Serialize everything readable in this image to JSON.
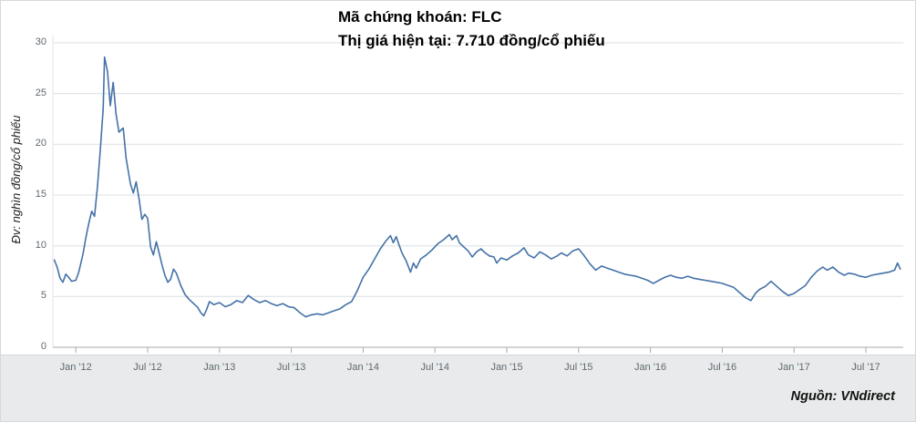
{
  "chart_data": {
    "type": "line",
    "title": "Mã chứng khoán: FLC",
    "subtitle": "Thị giá hiện tại: 7.710 đồng/cổ phiếu",
    "ylabel": "Đv: nghìn đồng/cổ phiếu",
    "source": "Nguồn: VNdirect",
    "line_color": "#4572a7",
    "grid_color": "#dcdfe2",
    "axis_color": "#a3a9af",
    "grid": true,
    "legend": "none",
    "xlim": [
      2011.84,
      2017.76
    ],
    "ylim": [
      0,
      30
    ],
    "yticks": [
      0,
      5,
      10,
      15,
      20,
      25,
      30
    ],
    "xticks": [
      {
        "v": 2012.0,
        "label": "Jan '12"
      },
      {
        "v": 2012.5,
        "label": "Jul '12"
      },
      {
        "v": 2013.0,
        "label": "Jan '13"
      },
      {
        "v": 2013.5,
        "label": "Jul '13"
      },
      {
        "v": 2014.0,
        "label": "Jan '14"
      },
      {
        "v": 2014.5,
        "label": "Jul '14"
      },
      {
        "v": 2015.0,
        "label": "Jan '15"
      },
      {
        "v": 2015.5,
        "label": "Jul '15"
      },
      {
        "v": 2016.0,
        "label": "Jan '16"
      },
      {
        "v": 2016.5,
        "label": "Jul '16"
      },
      {
        "v": 2017.0,
        "label": "Jan '17"
      },
      {
        "v": 2017.5,
        "label": "Jul '17"
      }
    ],
    "series": [
      {
        "name": "FLC",
        "points": [
          [
            2011.85,
            8.6
          ],
          [
            2011.87,
            7.9
          ],
          [
            2011.89,
            6.8
          ],
          [
            2011.91,
            6.4
          ],
          [
            2011.93,
            7.2
          ],
          [
            2011.95,
            6.9
          ],
          [
            2011.97,
            6.5
          ],
          [
            2012.0,
            6.6
          ],
          [
            2012.02,
            7.4
          ],
          [
            2012.05,
            9.2
          ],
          [
            2012.07,
            10.8
          ],
          [
            2012.09,
            12.2
          ],
          [
            2012.11,
            13.4
          ],
          [
            2012.13,
            12.9
          ],
          [
            2012.15,
            15.8
          ],
          [
            2012.17,
            19.4
          ],
          [
            2012.19,
            23.5
          ],
          [
            2012.2,
            28.6
          ],
          [
            2012.22,
            27.2
          ],
          [
            2012.24,
            23.8
          ],
          [
            2012.26,
            26.1
          ],
          [
            2012.28,
            23.0
          ],
          [
            2012.3,
            21.2
          ],
          [
            2012.33,
            21.6
          ],
          [
            2012.35,
            18.6
          ],
          [
            2012.38,
            16.1
          ],
          [
            2012.4,
            15.2
          ],
          [
            2012.42,
            16.3
          ],
          [
            2012.44,
            14.6
          ],
          [
            2012.46,
            12.6
          ],
          [
            2012.48,
            13.1
          ],
          [
            2012.5,
            12.7
          ],
          [
            2012.52,
            9.9
          ],
          [
            2012.54,
            9.1
          ],
          [
            2012.56,
            10.4
          ],
          [
            2012.58,
            9.3
          ],
          [
            2012.6,
            8.1
          ],
          [
            2012.62,
            7.1
          ],
          [
            2012.64,
            6.4
          ],
          [
            2012.66,
            6.7
          ],
          [
            2012.68,
            7.7
          ],
          [
            2012.7,
            7.3
          ],
          [
            2012.73,
            6.1
          ],
          [
            2012.76,
            5.2
          ],
          [
            2012.79,
            4.7
          ],
          [
            2012.82,
            4.3
          ],
          [
            2012.85,
            3.9
          ],
          [
            2012.87,
            3.4
          ],
          [
            2012.89,
            3.1
          ],
          [
            2012.91,
            3.7
          ],
          [
            2012.93,
            4.5
          ],
          [
            2012.96,
            4.2
          ],
          [
            2013.0,
            4.4
          ],
          [
            2013.04,
            4.0
          ],
          [
            2013.08,
            4.2
          ],
          [
            2013.12,
            4.6
          ],
          [
            2013.16,
            4.4
          ],
          [
            2013.2,
            5.1
          ],
          [
            2013.24,
            4.7
          ],
          [
            2013.28,
            4.4
          ],
          [
            2013.32,
            4.6
          ],
          [
            2013.36,
            4.3
          ],
          [
            2013.4,
            4.1
          ],
          [
            2013.44,
            4.3
          ],
          [
            2013.48,
            4.0
          ],
          [
            2013.52,
            3.9
          ],
          [
            2013.56,
            3.4
          ],
          [
            2013.6,
            3.0
          ],
          [
            2013.64,
            3.2
          ],
          [
            2013.68,
            3.3
          ],
          [
            2013.72,
            3.2
          ],
          [
            2013.76,
            3.4
          ],
          [
            2013.8,
            3.6
          ],
          [
            2013.84,
            3.8
          ],
          [
            2013.88,
            4.2
          ],
          [
            2013.92,
            4.5
          ],
          [
            2013.96,
            5.6
          ],
          [
            2014.0,
            6.9
          ],
          [
            2014.04,
            7.7
          ],
          [
            2014.08,
            8.7
          ],
          [
            2014.12,
            9.7
          ],
          [
            2014.16,
            10.5
          ],
          [
            2014.19,
            11.0
          ],
          [
            2014.21,
            10.3
          ],
          [
            2014.23,
            10.9
          ],
          [
            2014.25,
            10.1
          ],
          [
            2014.27,
            9.3
          ],
          [
            2014.3,
            8.5
          ],
          [
            2014.33,
            7.4
          ],
          [
            2014.35,
            8.3
          ],
          [
            2014.37,
            7.8
          ],
          [
            2014.4,
            8.7
          ],
          [
            2014.44,
            9.1
          ],
          [
            2014.48,
            9.6
          ],
          [
            2014.52,
            10.2
          ],
          [
            2014.56,
            10.6
          ],
          [
            2014.6,
            11.1
          ],
          [
            2014.62,
            10.6
          ],
          [
            2014.65,
            11.0
          ],
          [
            2014.67,
            10.3
          ],
          [
            2014.7,
            9.9
          ],
          [
            2014.73,
            9.5
          ],
          [
            2014.76,
            8.9
          ],
          [
            2014.79,
            9.4
          ],
          [
            2014.82,
            9.7
          ],
          [
            2014.85,
            9.3
          ],
          [
            2014.88,
            9.0
          ],
          [
            2014.91,
            8.9
          ],
          [
            2014.93,
            8.3
          ],
          [
            2014.96,
            8.8
          ],
          [
            2015.0,
            8.6
          ],
          [
            2015.04,
            9.0
          ],
          [
            2015.08,
            9.3
          ],
          [
            2015.12,
            9.8
          ],
          [
            2015.15,
            9.1
          ],
          [
            2015.19,
            8.8
          ],
          [
            2015.23,
            9.4
          ],
          [
            2015.27,
            9.1
          ],
          [
            2015.31,
            8.7
          ],
          [
            2015.35,
            9.0
          ],
          [
            2015.38,
            9.3
          ],
          [
            2015.42,
            9.0
          ],
          [
            2015.46,
            9.5
          ],
          [
            2015.5,
            9.7
          ],
          [
            2015.54,
            9.0
          ],
          [
            2015.58,
            8.2
          ],
          [
            2015.62,
            7.6
          ],
          [
            2015.66,
            8.0
          ],
          [
            2015.7,
            7.8
          ],
          [
            2015.74,
            7.6
          ],
          [
            2015.78,
            7.4
          ],
          [
            2015.82,
            7.2
          ],
          [
            2015.86,
            7.1
          ],
          [
            2015.9,
            7.0
          ],
          [
            2015.94,
            6.8
          ],
          [
            2015.98,
            6.6
          ],
          [
            2016.02,
            6.3
          ],
          [
            2016.06,
            6.6
          ],
          [
            2016.1,
            6.9
          ],
          [
            2016.14,
            7.1
          ],
          [
            2016.18,
            6.9
          ],
          [
            2016.22,
            6.8
          ],
          [
            2016.26,
            7.0
          ],
          [
            2016.3,
            6.8
          ],
          [
            2016.34,
            6.7
          ],
          [
            2016.38,
            6.6
          ],
          [
            2016.42,
            6.5
          ],
          [
            2016.46,
            6.4
          ],
          [
            2016.5,
            6.3
          ],
          [
            2016.54,
            6.1
          ],
          [
            2016.58,
            5.9
          ],
          [
            2016.62,
            5.4
          ],
          [
            2016.66,
            4.9
          ],
          [
            2016.7,
            4.6
          ],
          [
            2016.73,
            5.3
          ],
          [
            2016.76,
            5.7
          ],
          [
            2016.8,
            6.0
          ],
          [
            2016.84,
            6.5
          ],
          [
            2016.88,
            6.0
          ],
          [
            2016.92,
            5.5
          ],
          [
            2016.96,
            5.1
          ],
          [
            2017.0,
            5.3
          ],
          [
            2017.04,
            5.7
          ],
          [
            2017.08,
            6.1
          ],
          [
            2017.12,
            6.9
          ],
          [
            2017.16,
            7.5
          ],
          [
            2017.2,
            7.9
          ],
          [
            2017.23,
            7.6
          ],
          [
            2017.27,
            7.9
          ],
          [
            2017.31,
            7.4
          ],
          [
            2017.35,
            7.1
          ],
          [
            2017.38,
            7.3
          ],
          [
            2017.42,
            7.2
          ],
          [
            2017.46,
            7.0
          ],
          [
            2017.5,
            6.9
          ],
          [
            2017.54,
            7.1
          ],
          [
            2017.58,
            7.2
          ],
          [
            2017.62,
            7.3
          ],
          [
            2017.66,
            7.4
          ],
          [
            2017.7,
            7.6
          ],
          [
            2017.72,
            8.3
          ],
          [
            2017.74,
            7.71
          ]
        ]
      }
    ]
  }
}
